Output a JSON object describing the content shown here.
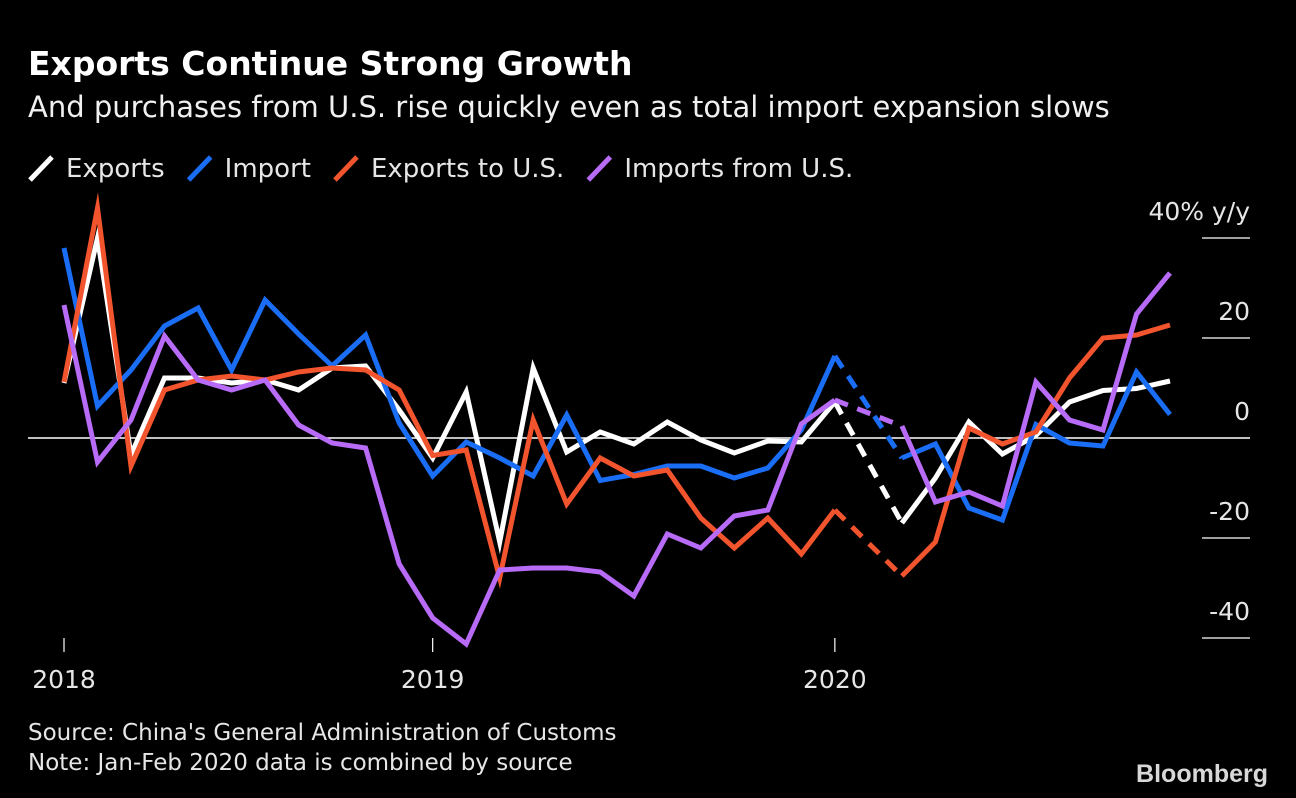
{
  "chart_data": {
    "type": "line",
    "title": "Exports Continue Strong Growth",
    "subtitle": "And purchases from U.S. rise quickly even as total import expansion slows",
    "source": "Source: China's General Administration of Customs",
    "note": "Note: Jan-Feb 2020 data is combined by source",
    "brand": "Bloomberg",
    "categories": [
      "2018",
      null,
      null,
      null,
      null,
      null,
      null,
      null,
      null,
      null,
      null,
      "2019",
      null,
      null,
      null,
      null,
      null,
      null,
      null,
      null,
      null,
      null,
      null,
      "2020",
      null,
      null,
      null,
      null,
      null,
      null,
      null,
      null,
      null,
      null
    ],
    "series": [
      {
        "name": "Exports",
        "color": "#ffffff",
        "values": [
          11,
          40,
          -3.4,
          12,
          12,
          11,
          11.6,
          9.6,
          14,
          14.4,
          5.6,
          -4,
          9.2,
          -20.8,
          14,
          -2.8,
          1.2,
          -1.2,
          3.2,
          -0.4,
          -3,
          -0.6,
          -0.8,
          7.2,
          null,
          -17,
          -8,
          3.2,
          -3.2,
          0.5,
          7.2,
          9.5,
          9.9,
          11.4
        ]
      },
      {
        "name": "Import",
        "color": "#1a6df5",
        "values": [
          38,
          6.4,
          13.6,
          22.4,
          26,
          13.6,
          27.6,
          20.8,
          14.4,
          20.6,
          3,
          -7.6,
          -0.8,
          -4,
          -7.6,
          4.6,
          -8.5,
          -7.3,
          -5.6,
          -5.6,
          -8,
          -6,
          1.6,
          16.4,
          null,
          -4,
          -1.2,
          -14,
          -16.4,
          2.7,
          -1,
          -1.6,
          13.2,
          4.7
        ]
      },
      {
        "name": "Exports to U.S.",
        "color": "#f2542d",
        "values": [
          11.2,
          46,
          -5.6,
          9.6,
          11.6,
          12.4,
          11.6,
          13.2,
          14,
          13.6,
          9.6,
          -3.5,
          -2.4,
          -28,
          3.6,
          -13.2,
          -4,
          -7.6,
          -6.4,
          -16,
          -22,
          -16,
          -23.2,
          -14.4,
          null,
          -27.6,
          -20.8,
          2,
          -1.2,
          1.2,
          12,
          20,
          20.6,
          22.6
        ]
      },
      {
        "name": "Imports from U.S.",
        "color": "#b86bf7",
        "values": [
          26.6,
          -4.8,
          3.6,
          20.4,
          11.6,
          9.6,
          11.6,
          2.6,
          -1,
          -2,
          -25.2,
          -36,
          -41.2,
          -26.4,
          -26,
          -26,
          -26.8,
          -31.6,
          -19.2,
          -22,
          -15.6,
          -14.4,
          2.8,
          7.6,
          null,
          2.4,
          -12.8,
          -10.8,
          -13.6,
          11.2,
          3.6,
          1.6,
          24.8,
          33
        ]
      }
    ],
    "ylim": [
      -42,
      48
    ],
    "yticks": [
      {
        "value": 40,
        "label": "40% y/y"
      },
      20,
      0,
      -20,
      -40
    ]
  }
}
